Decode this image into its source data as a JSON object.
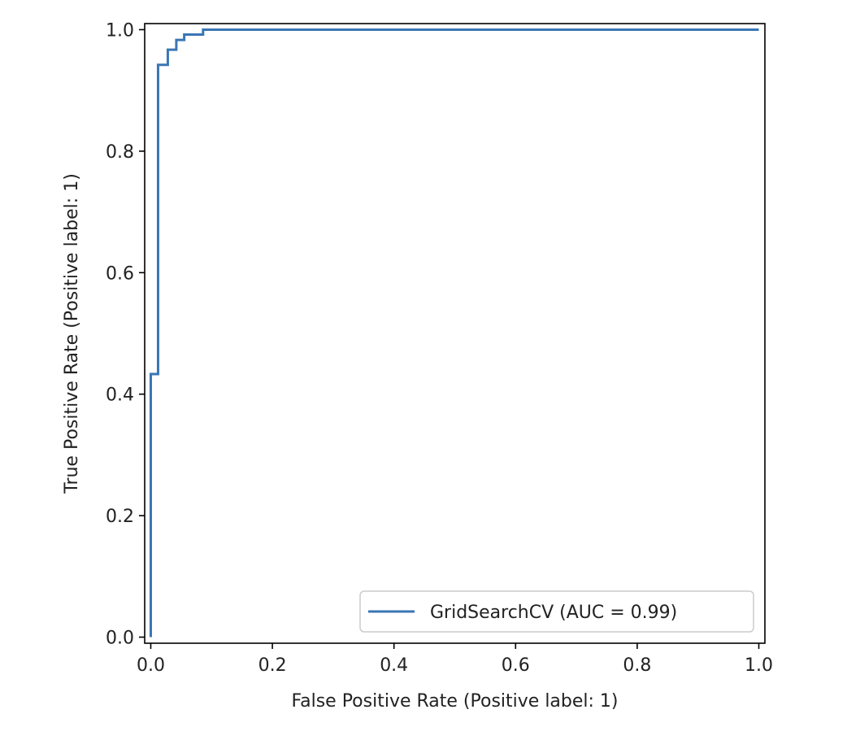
{
  "chart_data": {
    "type": "line",
    "title": "",
    "xlabel": "False Positive Rate (Positive label: 1)",
    "ylabel": "True Positive Rate (Positive label: 1)",
    "xlim": [
      -0.01,
      1.01
    ],
    "ylim": [
      -0.01,
      1.01
    ],
    "xticks": [
      0.0,
      0.2,
      0.4,
      0.6,
      0.8,
      1.0
    ],
    "xtick_labels": [
      "0.0",
      "0.2",
      "0.4",
      "0.6",
      "0.8",
      "1.0"
    ],
    "yticks": [
      0.0,
      0.2,
      0.4,
      0.6,
      0.8,
      1.0
    ],
    "ytick_labels": [
      "0.0",
      "0.2",
      "0.4",
      "0.6",
      "0.8",
      "1.0"
    ],
    "grid": false,
    "legend": {
      "placement": "lower-right"
    },
    "series": [
      {
        "name": "GridSearchCV (AUC = 0.99)",
        "color": "#3a76b4",
        "points": [
          [
            0.0,
            0.0
          ],
          [
            0.0,
            0.433
          ],
          [
            0.012,
            0.433
          ],
          [
            0.012,
            0.942
          ],
          [
            0.028,
            0.942
          ],
          [
            0.028,
            0.967
          ],
          [
            0.042,
            0.967
          ],
          [
            0.042,
            0.983
          ],
          [
            0.055,
            0.983
          ],
          [
            0.055,
            0.992
          ],
          [
            0.086,
            0.992
          ],
          [
            0.086,
            1.0
          ],
          [
            1.0,
            1.0
          ]
        ]
      }
    ]
  }
}
